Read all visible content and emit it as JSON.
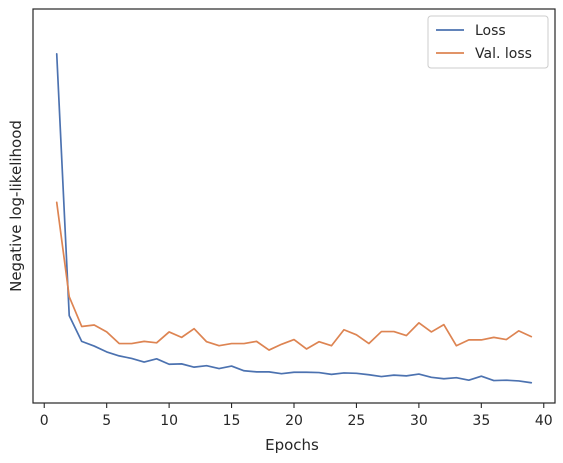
{
  "chart_data": {
    "type": "line",
    "title": "",
    "xlabel": "Epochs",
    "ylabel": "Negative log-likelihood",
    "xlim": [
      -0.9,
      40.9
    ],
    "ylim": [
      0,
      1
    ],
    "xticks": [
      0,
      5,
      10,
      15,
      20,
      25,
      30,
      35,
      40
    ],
    "y_tick_labels_shown": false,
    "grid": false,
    "legend_position": "top-right",
    "x": [
      1,
      2,
      3,
      4,
      5,
      6,
      7,
      8,
      9,
      10,
      11,
      12,
      13,
      14,
      15,
      16,
      17,
      18,
      19,
      20,
      21,
      22,
      23,
      24,
      25,
      26,
      27,
      28,
      29,
      30,
      31,
      32,
      33,
      34,
      35,
      36,
      37,
      38,
      39
    ],
    "series": [
      {
        "name": "Loss",
        "color": "#4c72b0",
        "values": [
          0.937,
          0.216,
          0.145,
          0.132,
          0.116,
          0.105,
          0.098,
          0.088,
          0.097,
          0.082,
          0.083,
          0.074,
          0.078,
          0.07,
          0.077,
          0.064,
          0.061,
          0.061,
          0.056,
          0.06,
          0.06,
          0.059,
          0.054,
          0.058,
          0.057,
          0.053,
          0.048,
          0.052,
          0.05,
          0.055,
          0.046,
          0.042,
          0.045,
          0.038,
          0.049,
          0.037,
          0.038,
          0.036,
          0.031
        ]
      },
      {
        "name": "Val. loss",
        "color": "#dd8452",
        "values": [
          0.528,
          0.268,
          0.186,
          0.19,
          0.171,
          0.139,
          0.139,
          0.145,
          0.141,
          0.171,
          0.156,
          0.18,
          0.144,
          0.133,
          0.139,
          0.139,
          0.145,
          0.121,
          0.137,
          0.15,
          0.124,
          0.144,
          0.133,
          0.177,
          0.163,
          0.139,
          0.172,
          0.172,
          0.161,
          0.196,
          0.171,
          0.191,
          0.133,
          0.149,
          0.149,
          0.156,
          0.15,
          0.174,
          0.158
        ]
      }
    ]
  }
}
